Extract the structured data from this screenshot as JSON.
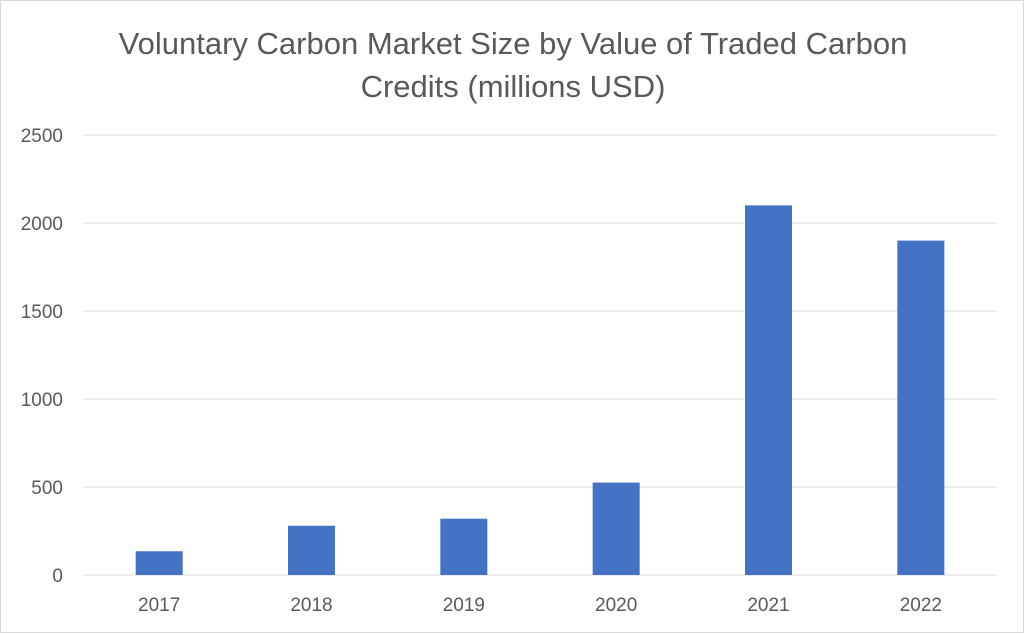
{
  "chart_data": {
    "type": "bar",
    "title_lines": [
      "Voluntary Carbon Market Size by Value of Traded Carbon",
      "Credits (millions USD)"
    ],
    "categories": [
      "2017",
      "2018",
      "2019",
      "2020",
      "2021",
      "2022"
    ],
    "values": [
      135,
      280,
      320,
      525,
      2100,
      1900
    ],
    "ylim": [
      0,
      2500
    ],
    "yticks": [
      0,
      500,
      1000,
      1500,
      2000,
      2500
    ],
    "ytick_labels": [
      "0",
      "500",
      "1000",
      "1500",
      "2000",
      "2500"
    ],
    "grid": true,
    "legend": "none",
    "bar_color": "#4472c4",
    "gridline_color": "#d9d9d9"
  }
}
